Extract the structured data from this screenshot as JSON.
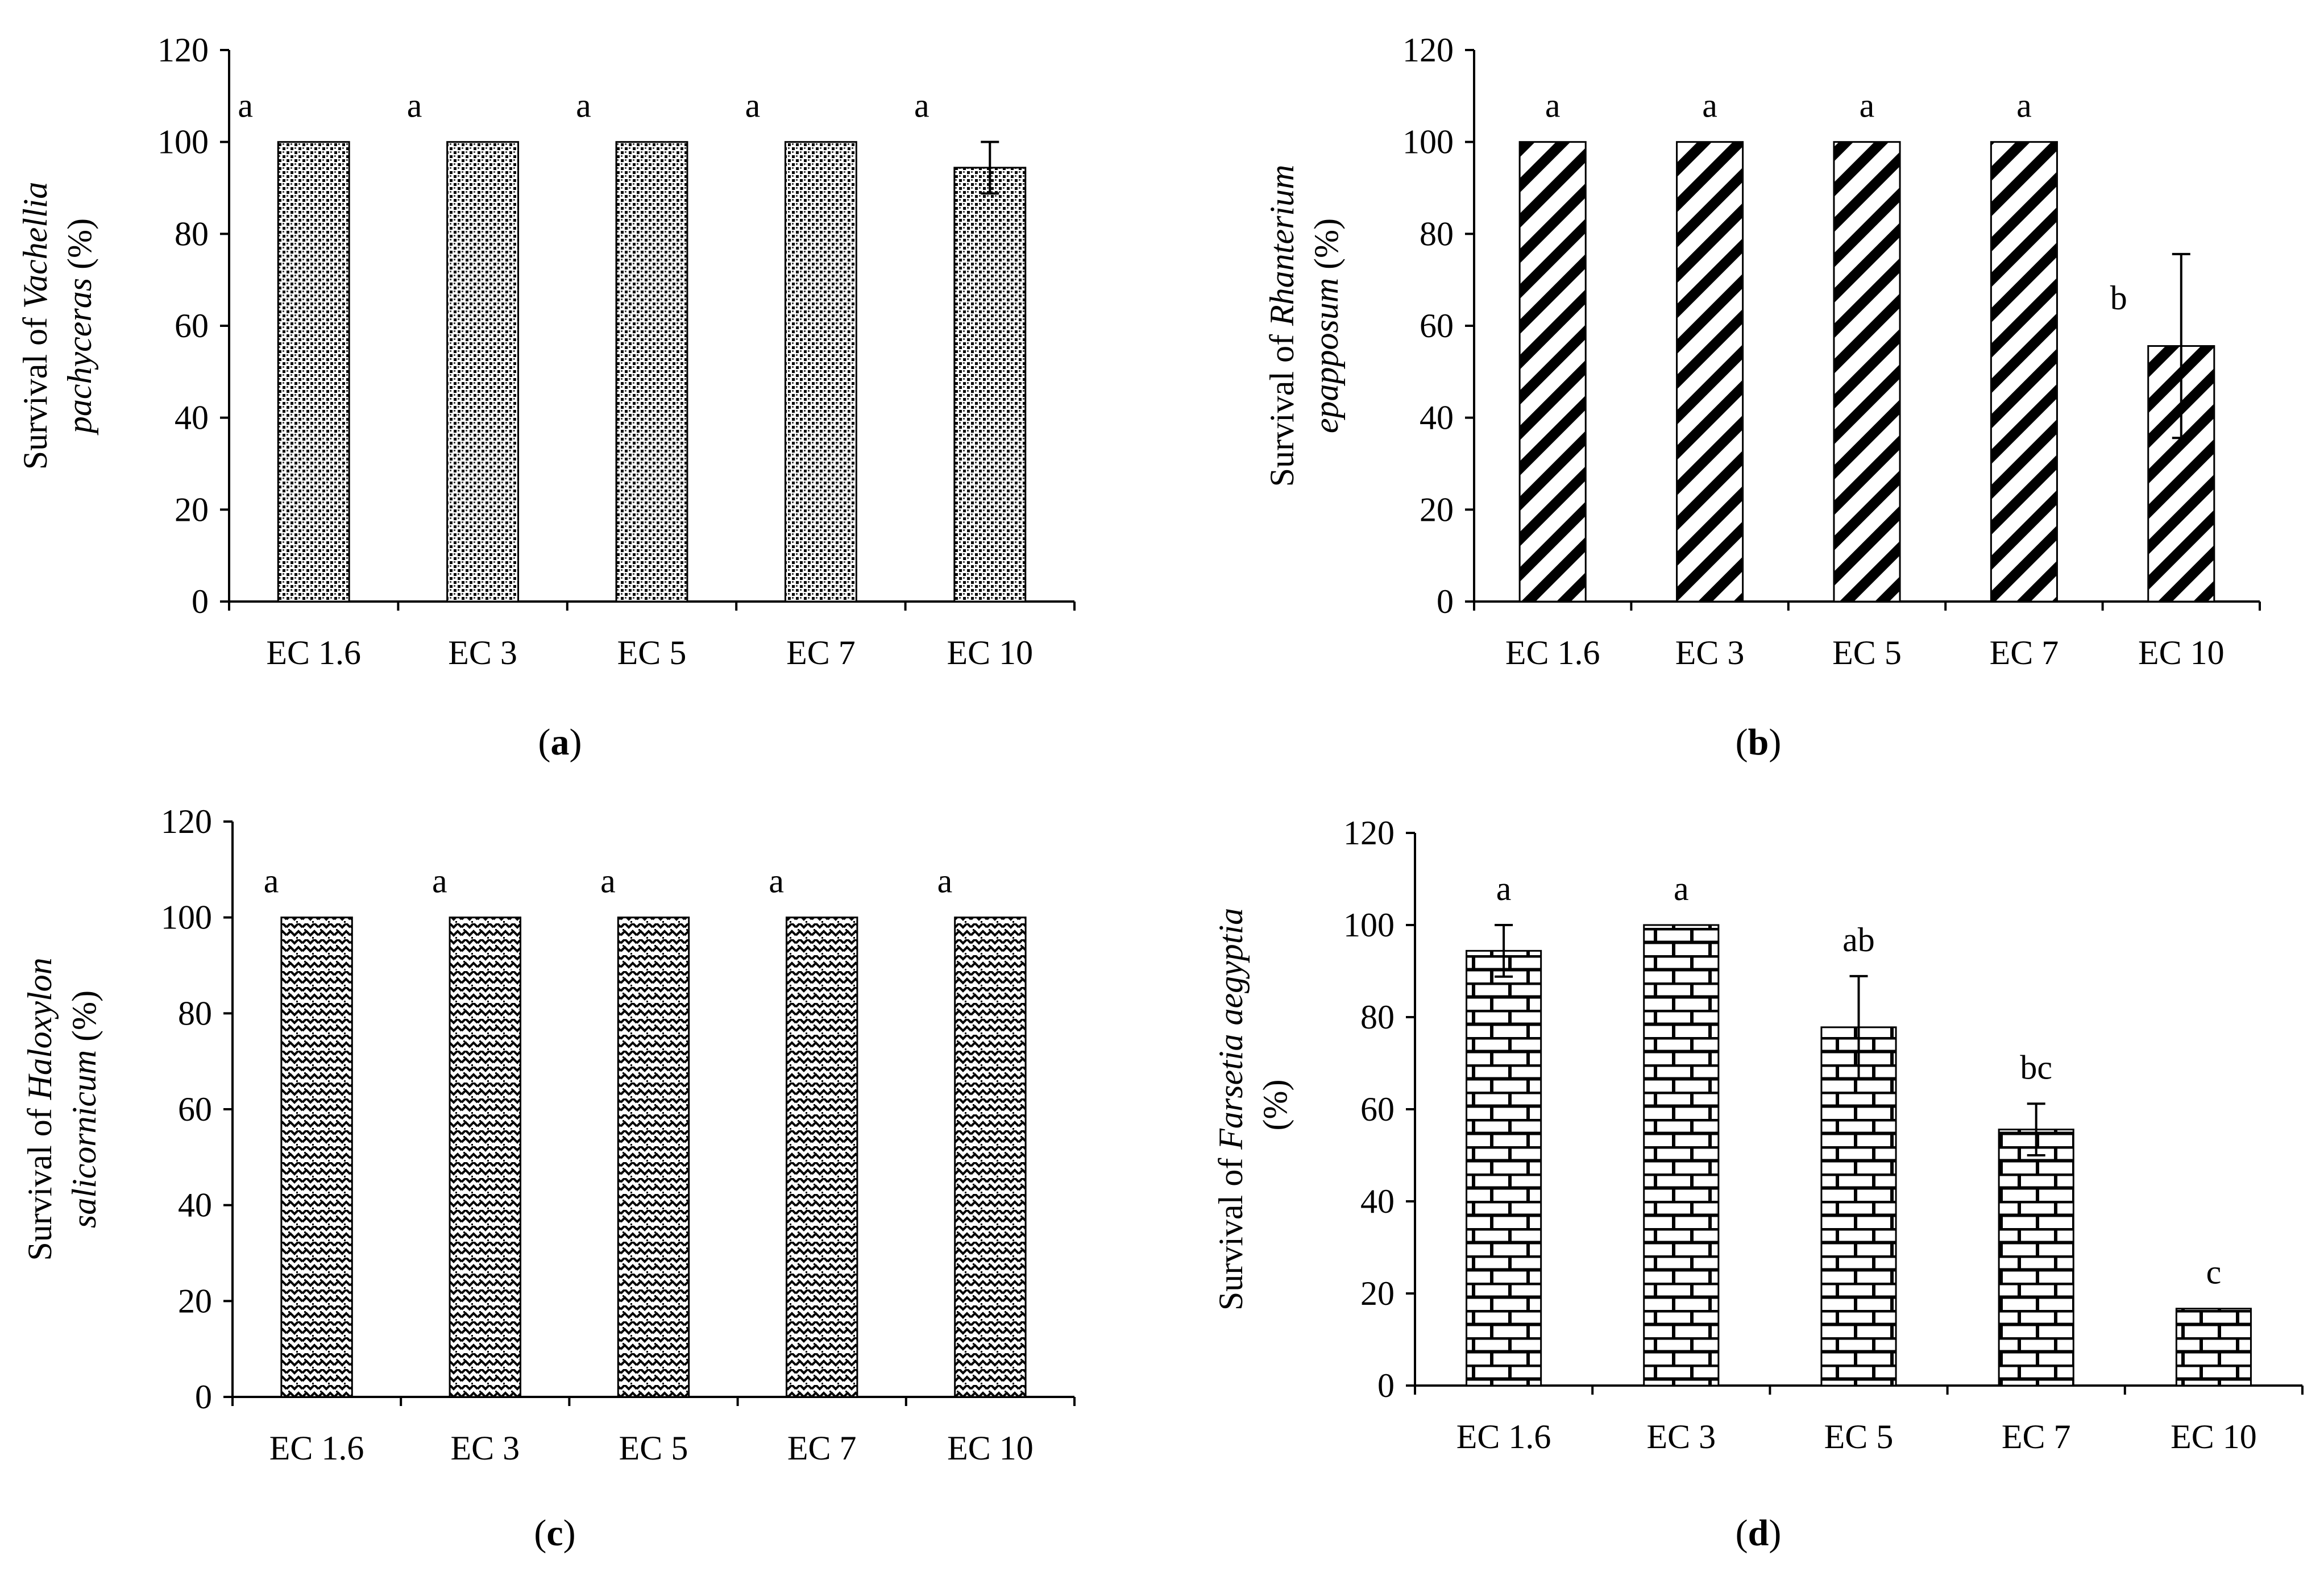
{
  "chart_data": [
    {
      "type": "bar",
      "panel_label": "a",
      "ylabel_prefix": "Survival of ",
      "ylabel_species": "Vachellia pachyceras",
      "ylabel_line1_species": "Vachellia",
      "ylabel_line2_species": "pachyceras",
      "ylabel_suffix": " (%)",
      "ylim": [
        0,
        120
      ],
      "yticks": [
        0,
        20,
        40,
        60,
        80,
        100,
        120
      ],
      "categories": [
        "EC 1.6",
        "EC 3",
        "EC 5",
        "EC 7",
        "EC 10"
      ],
      "values": [
        100,
        100,
        100,
        100,
        94.4
      ],
      "errors": [
        0,
        0,
        0,
        0,
        5.6
      ],
      "significance": [
        "a",
        "a",
        "a",
        "a",
        "a"
      ],
      "pattern": "dotted-grid"
    },
    {
      "type": "bar",
      "panel_label": "b",
      "ylabel_prefix": "Survival of ",
      "ylabel_species": "Rhanterium epapposum",
      "ylabel_line1_species": "Rhanterium",
      "ylabel_line2_species": "epapposum",
      "ylabel_suffix": " (%)",
      "ylim": [
        0,
        120
      ],
      "yticks": [
        0,
        20,
        40,
        60,
        80,
        100,
        120
      ],
      "categories": [
        "EC 1.6",
        "EC 3",
        "EC 5",
        "EC 7",
        "EC 10"
      ],
      "values": [
        100,
        100,
        100,
        100,
        55.6
      ],
      "errors": [
        0,
        0,
        0,
        0,
        20
      ],
      "significance": [
        "a",
        "a",
        "a",
        "a",
        "b"
      ],
      "pattern": "diagonal-stripes"
    },
    {
      "type": "bar",
      "panel_label": "c",
      "ylabel_prefix": "Survival of ",
      "ylabel_species": "Haloxylon salicornicum",
      "ylabel_line1_species": "Haloxylon",
      "ylabel_line2_species": "salicornicum",
      "ylabel_suffix": " (%)",
      "ylim": [
        0,
        120
      ],
      "yticks": [
        0,
        20,
        40,
        60,
        80,
        100,
        120
      ],
      "categories": [
        "EC 1.6",
        "EC 3",
        "EC 5",
        "EC 7",
        "EC 10"
      ],
      "values": [
        100,
        100,
        100,
        100,
        100
      ],
      "errors": [
        0,
        0,
        0,
        0,
        0
      ],
      "significance": [
        "a",
        "a",
        "a",
        "a",
        "a"
      ],
      "pattern": "zigzag"
    },
    {
      "type": "bar",
      "panel_label": "d",
      "ylabel_prefix": "Survival of ",
      "ylabel_species": "Farsetia aegyptia",
      "ylabel_line1_species": "Farsetia aegyptia",
      "ylabel_line2_species": "",
      "ylabel_suffix": " (%)",
      "ylim": [
        0,
        120
      ],
      "yticks": [
        0,
        20,
        40,
        60,
        80,
        100,
        120
      ],
      "categories": [
        "EC 1.6",
        "EC 3",
        "EC 5",
        "EC 7",
        "EC 10"
      ],
      "values": [
        94.4,
        100,
        77.8,
        55.6,
        16.7
      ],
      "errors": [
        5.6,
        0,
        11.1,
        5.6,
        0
      ],
      "significance": [
        "a",
        "a",
        "ab",
        "bc",
        "c"
      ],
      "pattern": "bricks"
    }
  ]
}
